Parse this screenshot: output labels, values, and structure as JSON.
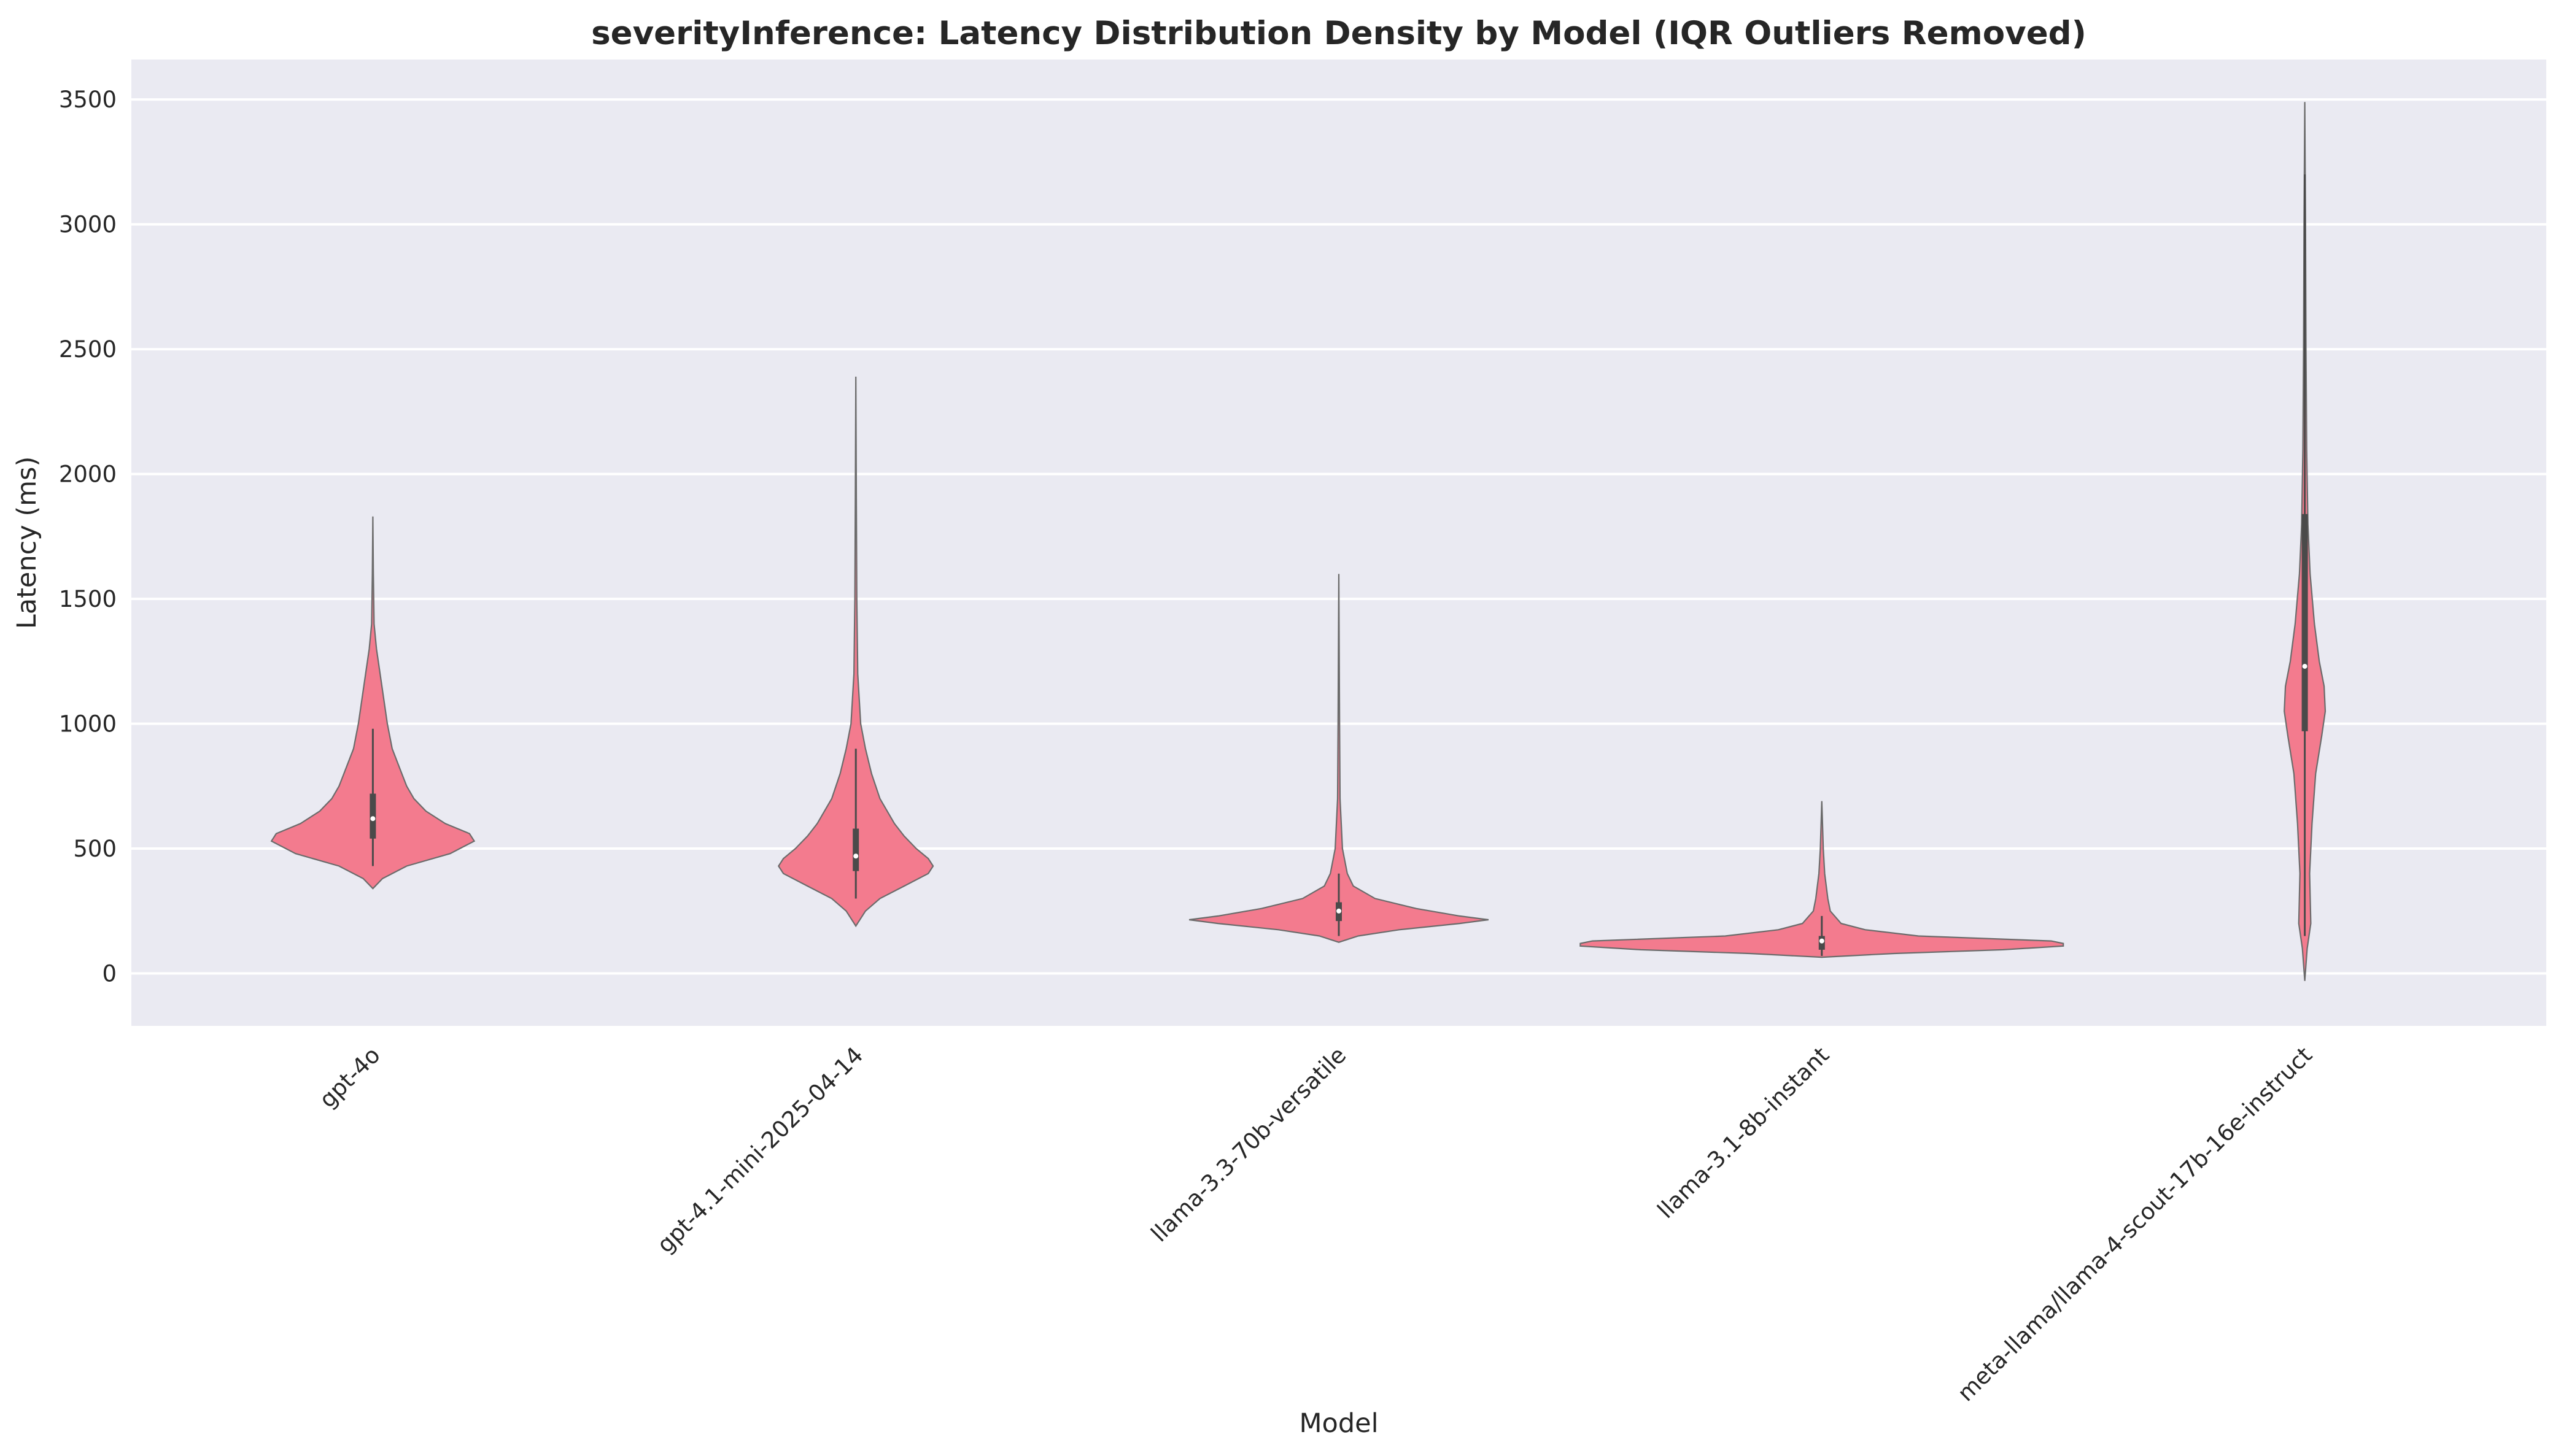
{
  "chart_data": {
    "type": "violin",
    "title": "severityInference: Latency Distribution Density by Model (IQR Outliers Removed)",
    "xlabel": "Model",
    "ylabel": "Latency (ms)",
    "ylim": [
      -210,
      3660
    ],
    "yticks": [
      0,
      500,
      1000,
      1500,
      2000,
      2500,
      3000,
      3500
    ],
    "grid": true,
    "background_color": "#eaeaf2",
    "violin_color": "#f37b8e",
    "categories": [
      "gpt-4o",
      "gpt-4.1-mini-2025-04-14",
      "llama-3.3-70b-versatile",
      "llama-3.1-8b-instant",
      "meta-llama/llama-4-scout-17b-16e-instruct"
    ],
    "series": [
      {
        "category": "gpt-4o",
        "min": 340,
        "max": 1830,
        "q1": 540,
        "median": 620,
        "q3": 720,
        "whisker_low": 430,
        "whisker_high": 980,
        "density": [
          [
            340,
            0.0
          ],
          [
            380,
            0.04
          ],
          [
            430,
            0.14
          ],
          [
            480,
            0.32
          ],
          [
            530,
            0.42
          ],
          [
            560,
            0.4
          ],
          [
            600,
            0.3
          ],
          [
            650,
            0.22
          ],
          [
            700,
            0.17
          ],
          [
            750,
            0.14
          ],
          [
            800,
            0.12
          ],
          [
            900,
            0.08
          ],
          [
            1000,
            0.06
          ],
          [
            1100,
            0.045
          ],
          [
            1200,
            0.03
          ],
          [
            1300,
            0.015
          ],
          [
            1400,
            0.005
          ],
          [
            1600,
            0.002
          ],
          [
            1830,
            0.0
          ]
        ]
      },
      {
        "category": "gpt-4.1-mini-2025-04-14",
        "min": 190,
        "max": 2390,
        "q1": 410,
        "median": 470,
        "q3": 580,
        "whisker_low": 300,
        "whisker_high": 900,
        "density": [
          [
            190,
            0.0
          ],
          [
            250,
            0.04
          ],
          [
            300,
            0.1
          ],
          [
            350,
            0.2
          ],
          [
            400,
            0.3
          ],
          [
            430,
            0.32
          ],
          [
            460,
            0.3
          ],
          [
            500,
            0.25
          ],
          [
            550,
            0.2
          ],
          [
            600,
            0.16
          ],
          [
            700,
            0.1
          ],
          [
            800,
            0.065
          ],
          [
            900,
            0.04
          ],
          [
            1000,
            0.02
          ],
          [
            1200,
            0.008
          ],
          [
            1500,
            0.004
          ],
          [
            1900,
            0.002
          ],
          [
            2390,
            0.0
          ]
        ]
      },
      {
        "category": "llama-3.3-70b-versatile",
        "min": 125,
        "max": 1600,
        "q1": 210,
        "median": 250,
        "q3": 285,
        "whisker_low": 150,
        "whisker_high": 400,
        "density": [
          [
            125,
            0.0
          ],
          [
            150,
            0.08
          ],
          [
            175,
            0.25
          ],
          [
            200,
            0.5
          ],
          [
            215,
            0.62
          ],
          [
            230,
            0.5
          ],
          [
            260,
            0.32
          ],
          [
            300,
            0.15
          ],
          [
            350,
            0.06
          ],
          [
            400,
            0.035
          ],
          [
            500,
            0.015
          ],
          [
            700,
            0.005
          ],
          [
            1000,
            0.003
          ],
          [
            1600,
            0.0
          ]
        ]
      },
      {
        "category": "llama-3.1-8b-instant",
        "min": 65,
        "max": 690,
        "q1": 95,
        "median": 130,
        "q3": 150,
        "whisker_low": 70,
        "whisker_high": 230,
        "density": [
          [
            65,
            0.0
          ],
          [
            80,
            0.3
          ],
          [
            95,
            0.75
          ],
          [
            110,
            1.0
          ],
          [
            120,
            1.0
          ],
          [
            130,
            0.95
          ],
          [
            150,
            0.4
          ],
          [
            175,
            0.18
          ],
          [
            200,
            0.08
          ],
          [
            250,
            0.035
          ],
          [
            300,
            0.025
          ],
          [
            400,
            0.012
          ],
          [
            500,
            0.006
          ],
          [
            690,
            0.0
          ]
        ]
      },
      {
        "category": "meta-llama/llama-4-scout-17b-16e-instruct",
        "min": -30,
        "max": 3490,
        "q1": 970,
        "median": 1230,
        "q3": 1840,
        "whisker_low": 150,
        "whisker_high": 3200,
        "density": [
          [
            -30,
            0.0
          ],
          [
            100,
            0.01
          ],
          [
            200,
            0.025
          ],
          [
            400,
            0.02
          ],
          [
            600,
            0.03
          ],
          [
            800,
            0.045
          ],
          [
            950,
            0.07
          ],
          [
            1050,
            0.085
          ],
          [
            1150,
            0.08
          ],
          [
            1250,
            0.06
          ],
          [
            1400,
            0.04
          ],
          [
            1600,
            0.022
          ],
          [
            1800,
            0.013
          ],
          [
            2100,
            0.008
          ],
          [
            2500,
            0.005
          ],
          [
            3000,
            0.003
          ],
          [
            3490,
            0.0
          ]
        ]
      }
    ]
  }
}
